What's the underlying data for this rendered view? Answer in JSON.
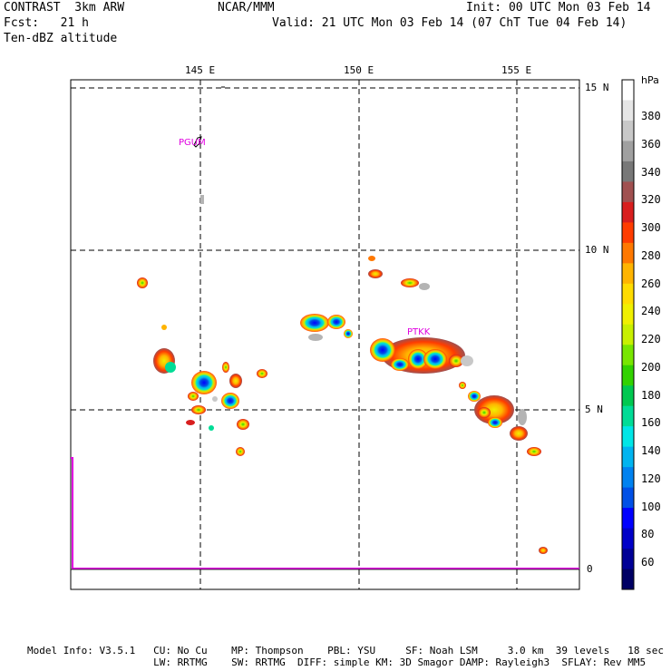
{
  "header": {
    "model": "CONTRAST  3km ARW",
    "center": "NCAR/MMM",
    "init": "Init: 00 UTC Mon 03 Feb 14",
    "fcst": "Fcst:   21 h",
    "valid": "Valid: 21 UTC Mon 03 Feb 14 (07 ChT Tue 04 Feb 14)",
    "field": "Ten-dBZ altitude"
  },
  "map": {
    "lon_labels": [
      "145 E",
      "150 E",
      "155 E"
    ],
    "lat_labels": [
      "15 N",
      "10 N",
      "5 N"
    ],
    "stations": [
      {
        "id": "PGUM",
        "name": "PGUM"
      },
      {
        "id": "PTKK",
        "name": "PTKK"
      }
    ],
    "zero_label": "0"
  },
  "colorbar": {
    "unit": "hPa",
    "labels": [
      "380",
      "360",
      "340",
      "320",
      "300",
      "280",
      "260",
      "240",
      "220",
      "200",
      "180",
      "160",
      "140",
      "120",
      "100",
      "80",
      "60"
    ],
    "colors": [
      "#ffffff",
      "#e6e6e6",
      "#c8c8c8",
      "#a0a0a0",
      "#787878",
      "#a05050",
      "#d81e1e",
      "#ff3c00",
      "#ff7800",
      "#ffb400",
      "#ffdc00",
      "#f0f000",
      "#c8f000",
      "#78e600",
      "#32d200",
      "#00c850",
      "#00dc96",
      "#00e6e6",
      "#00b4f0",
      "#0082f0",
      "#0050e6",
      "#0000ff",
      "#0000c8",
      "#000096",
      "#000064"
    ]
  },
  "footer": {
    "line1": "Model Info: V3.5.1   CU: No Cu    MP: Thompson    PBL: YSU     SF: Noah LSM     3.0 km  39 levels   18 sec",
    "line2": "                     LW: RRTMG    SW: RRTMG  DIFF: simple KM: 3D Smagor DAMP: Rayleigh3  SFLAY: Rev MM5"
  }
}
